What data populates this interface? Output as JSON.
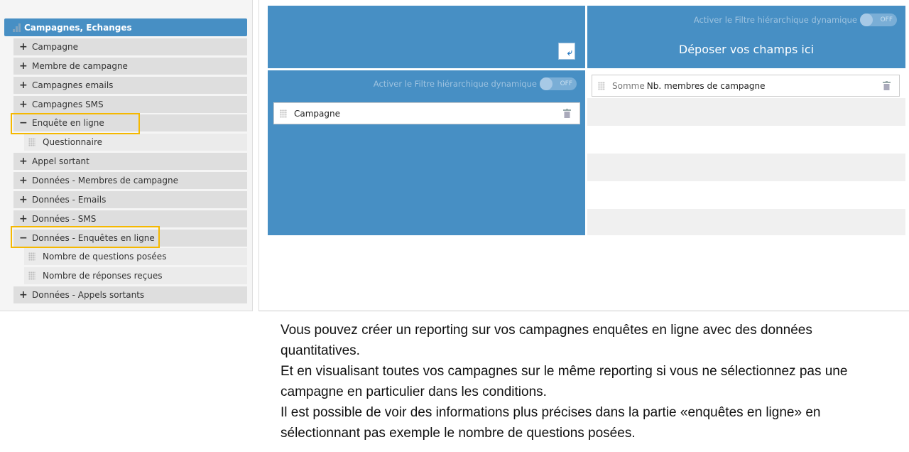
{
  "sidebar": {
    "header": "Campagnes, Echanges",
    "items": [
      {
        "sign": "+",
        "label": "Campagne"
      },
      {
        "sign": "+",
        "label": "Membre de campagne"
      },
      {
        "sign": "+",
        "label": "Campagnes emails"
      },
      {
        "sign": "+",
        "label": "Campagnes SMS"
      },
      {
        "sign": "−",
        "label": "Enquête en ligne"
      },
      {
        "sub": true,
        "label": "Questionnaire"
      },
      {
        "sign": "+",
        "label": "Appel sortant"
      },
      {
        "sign": "+",
        "label": "Données - Membres de campagne"
      },
      {
        "sign": "+",
        "label": "Données - Emails"
      },
      {
        "sign": "+",
        "label": "Données - SMS"
      },
      {
        "sign": "−",
        "label": "Données - Enquêtes en ligne"
      },
      {
        "sub": true,
        "label": "Nombre de questions posées"
      },
      {
        "sub": true,
        "label": "Nombre de réponses reçues"
      },
      {
        "sign": "+",
        "label": "Données - Appels sortants"
      }
    ]
  },
  "pivot": {
    "filter_label": "Activer le Filtre hiérarchique dynamique",
    "toggle_state": "OFF",
    "drop_here": "Déposer vos champs ici",
    "row_field": "Campagne",
    "value_field_agg": "Somme",
    "value_field": "Nb. membres de campagne"
  },
  "caption": [
    "Vous pouvez créer un reporting sur vos campagnes enquêtes en ligne avec des données quantitatives.",
    "Et en visualisant toutes vos campagnes sur le même reporting si vous ne sélectionnez pas une campagne en particulier dans les conditions.",
    "Il est possible de voir des informations plus précises dans la partie «enquêtes en ligne» en sélectionnant pas exemple le nombre de questions posées."
  ],
  "colors": {
    "accent": "#478fc4",
    "highlight": "#f5b800"
  }
}
